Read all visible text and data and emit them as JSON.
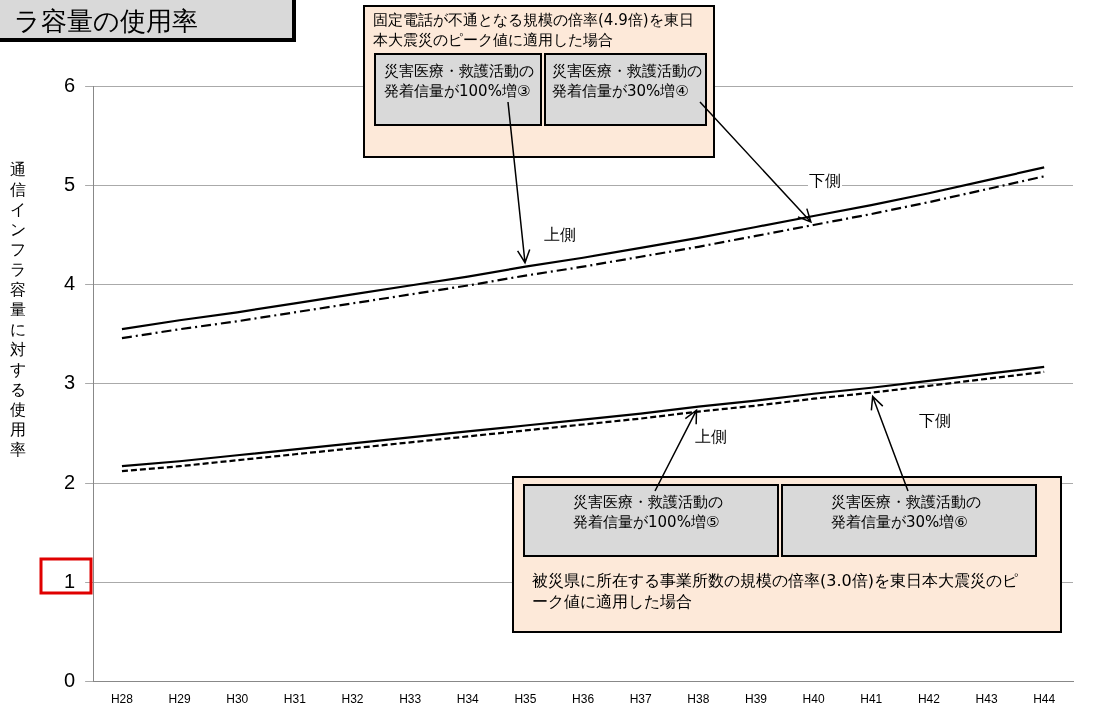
{
  "chart_data": {
    "type": "line",
    "title": "ラ容量の使用率",
    "ylabel": "通信インフラ容量に対する使用率",
    "categories": [
      "H28",
      "H29",
      "H30",
      "H31",
      "H32",
      "H33",
      "H34",
      "H35",
      "H36",
      "H37",
      "H38",
      "H39",
      "H40",
      "H41",
      "H42",
      "H43",
      "H44"
    ],
    "series": [
      {
        "color": "#000000",
        "line_style": "solid",
        "values": [
          3.55,
          3.64,
          3.72,
          3.81,
          3.9,
          3.99,
          4.08,
          4.18,
          4.27,
          4.37,
          4.47,
          4.58,
          4.69,
          4.8,
          4.92,
          5.05,
          5.18
        ]
      },
      {
        "color": "#000000",
        "line_style": "dashdot",
        "values": [
          3.46,
          3.55,
          3.63,
          3.72,
          3.81,
          3.9,
          3.99,
          4.09,
          4.18,
          4.28,
          4.38,
          4.49,
          4.6,
          4.71,
          4.83,
          4.96,
          5.09
        ]
      },
      {
        "color": "#000000",
        "line_style": "solid",
        "values": [
          2.17,
          2.22,
          2.28,
          2.34,
          2.4,
          2.46,
          2.52,
          2.58,
          2.64,
          2.7,
          2.77,
          2.83,
          2.9,
          2.96,
          3.03,
          3.1,
          3.17
        ]
      },
      {
        "color": "#000000",
        "line_style": "dashed",
        "values": [
          2.12,
          2.17,
          2.23,
          2.29,
          2.35,
          2.41,
          2.47,
          2.53,
          2.59,
          2.65,
          2.72,
          2.78,
          2.85,
          2.91,
          2.98,
          3.05,
          3.12
        ]
      }
    ],
    "ylim": [
      0,
      6
    ],
    "yticks": [
      0,
      1,
      2,
      3,
      4,
      5,
      6
    ],
    "grid": "y",
    "legend": false,
    "marker": "none",
    "annotations": [
      "固定電話が不通となる規模の倍率(4.9倍)を東日本大震災のピーク値に適用した場合",
      "被災県に所在する事業所数の規模の倍率(3.0倍)を東日本大震災のピーク値に適用した場合",
      "上側",
      "下側",
      "上側",
      "下側",
      {
        "text": "災害医療・救護活動の発着信量が100%増③",
        "x": "H35",
        "y": 4.18
      },
      {
        "text": "災害医療・救護活動の発着信量が30%増④",
        "x": "H40",
        "y": 4.6
      },
      {
        "text": "災害医療・救護活動の発着信量が100%増⑤",
        "x": "H38",
        "y": 2.77
      },
      {
        "text": "災害医療・救護活動の発着信量が30%増⑥",
        "x": "H41",
        "y": 2.91
      }
    ]
  }
}
